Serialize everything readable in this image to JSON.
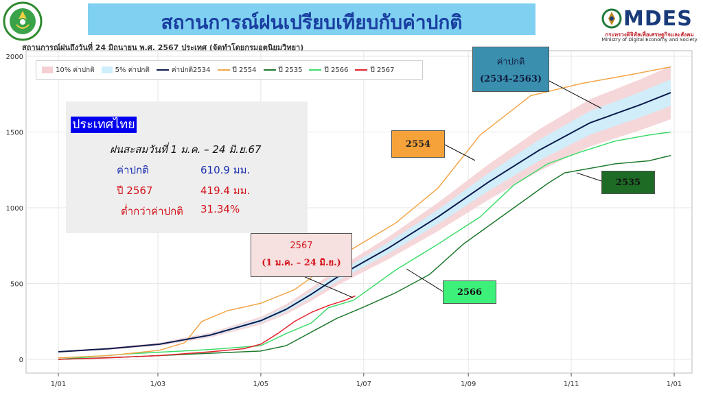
{
  "header": {
    "title": "สถานการณ์ฝนเปรียบเทียบกับค่าปกติ",
    "subtitle": "สถานการณ์ฝนถึงวันที่ 24 มิถุนายน พ.ศ. 2567 ประเทศ (จัดทำโดยกรมอุตุนิยมวิทยา)",
    "logo_right_text": "MDES",
    "logo_right_sub1": "กระทรวงดิจิทัลเพื่อเศรษฐกิจและสังคม",
    "logo_right_sub2": "Ministry of Digital Economy and Society"
  },
  "infobox": {
    "heading": "ประเทศไทย",
    "line1": "ฝนสะสมวันที่ 1 ม.ค. –   24 มิ.ย.67",
    "normal_label": "ค่าปกติ",
    "normal_value": "610.9 มม.",
    "year_label": "ปี 2567",
    "year_value": "419.4 มม.",
    "below_label": "ต่ำกว่าค่าปกติ",
    "below_value": "31.34%"
  },
  "callouts": {
    "normal_line1": "ค่าปกติ",
    "normal_line2": "(2534-2563)",
    "y2554": "2554",
    "y2535": "2535",
    "y2566": "2566",
    "y2567_line1": "2567",
    "y2567_line2": "(1 ม.ค. – 24 มิ.ย.)"
  },
  "chart_data": {
    "type": "line",
    "x_tick_labels": [
      "1/01",
      "1/03",
      "1/05",
      "1/07",
      "1/09",
      "1/11",
      "1/01"
    ],
    "x_tick_days": [
      0,
      59,
      120,
      181,
      243,
      304,
      365
    ],
    "y_ticks": [
      0,
      500,
      1000,
      1500,
      2000
    ],
    "ylim": [
      0,
      2000
    ],
    "xlim": [
      0,
      365
    ],
    "grid": true,
    "legend_position": "top-left",
    "bands": [
      {
        "name": "10% ค่าปกติ",
        "color": "#f4d0d2",
        "fraction": 0.1
      },
      {
        "name": "5% ค่าปกติ",
        "color": "#cfeefb",
        "fraction": 0.05
      }
    ],
    "series": [
      {
        "name": "ค่าปกติ2534",
        "color": "#0d1b4d",
        "width": 2,
        "x": [
          0,
          30,
          60,
          90,
          120,
          135,
          150,
          165,
          176,
          195,
          225,
          255,
          285,
          315,
          345,
          363
        ],
        "values": [
          50,
          70,
          100,
          160,
          255,
          330,
          430,
          540,
          611,
          730,
          940,
          1170,
          1380,
          1560,
          1680,
          1760
        ]
      },
      {
        "name": "ปี 2554",
        "color": "#f2a64a",
        "width": 1.5,
        "x": [
          0,
          30,
          60,
          75,
          85,
          100,
          120,
          140,
          155,
          170,
          185,
          200,
          225,
          250,
          280,
          310,
          340,
          363
        ],
        "values": [
          10,
          25,
          60,
          110,
          250,
          320,
          370,
          460,
          580,
          700,
          800,
          900,
          1130,
          1480,
          1740,
          1820,
          1880,
          1930
        ]
      },
      {
        "name": "ปี 2535",
        "color": "#1e7a2e",
        "width": 1.5,
        "x": [
          0,
          40,
          90,
          120,
          135,
          150,
          165,
          180,
          200,
          220,
          240,
          255,
          270,
          290,
          300,
          310,
          330,
          350,
          363
        ],
        "values": [
          0,
          15,
          40,
          55,
          90,
          180,
          270,
          340,
          440,
          560,
          760,
          880,
          1000,
          1160,
          1230,
          1250,
          1290,
          1310,
          1345
        ]
      },
      {
        "name": "ปี 2566",
        "color": "#3ddc6b",
        "width": 1.5,
        "x": [
          0,
          40,
          90,
          120,
          135,
          150,
          160,
          175,
          200,
          225,
          250,
          270,
          290,
          310,
          330,
          350,
          363
        ],
        "values": [
          0,
          35,
          65,
          90,
          170,
          240,
          340,
          390,
          590,
          760,
          940,
          1150,
          1290,
          1370,
          1440,
          1480,
          1500
        ]
      },
      {
        "name": "ปี 2567",
        "color": "#e3222c",
        "width": 1.5,
        "x": [
          0,
          30,
          60,
          90,
          110,
          120,
          130,
          140,
          150,
          160,
          170,
          176
        ],
        "values": [
          0,
          10,
          25,
          50,
          70,
          100,
          170,
          250,
          310,
          355,
          390,
          419
        ]
      }
    ]
  }
}
